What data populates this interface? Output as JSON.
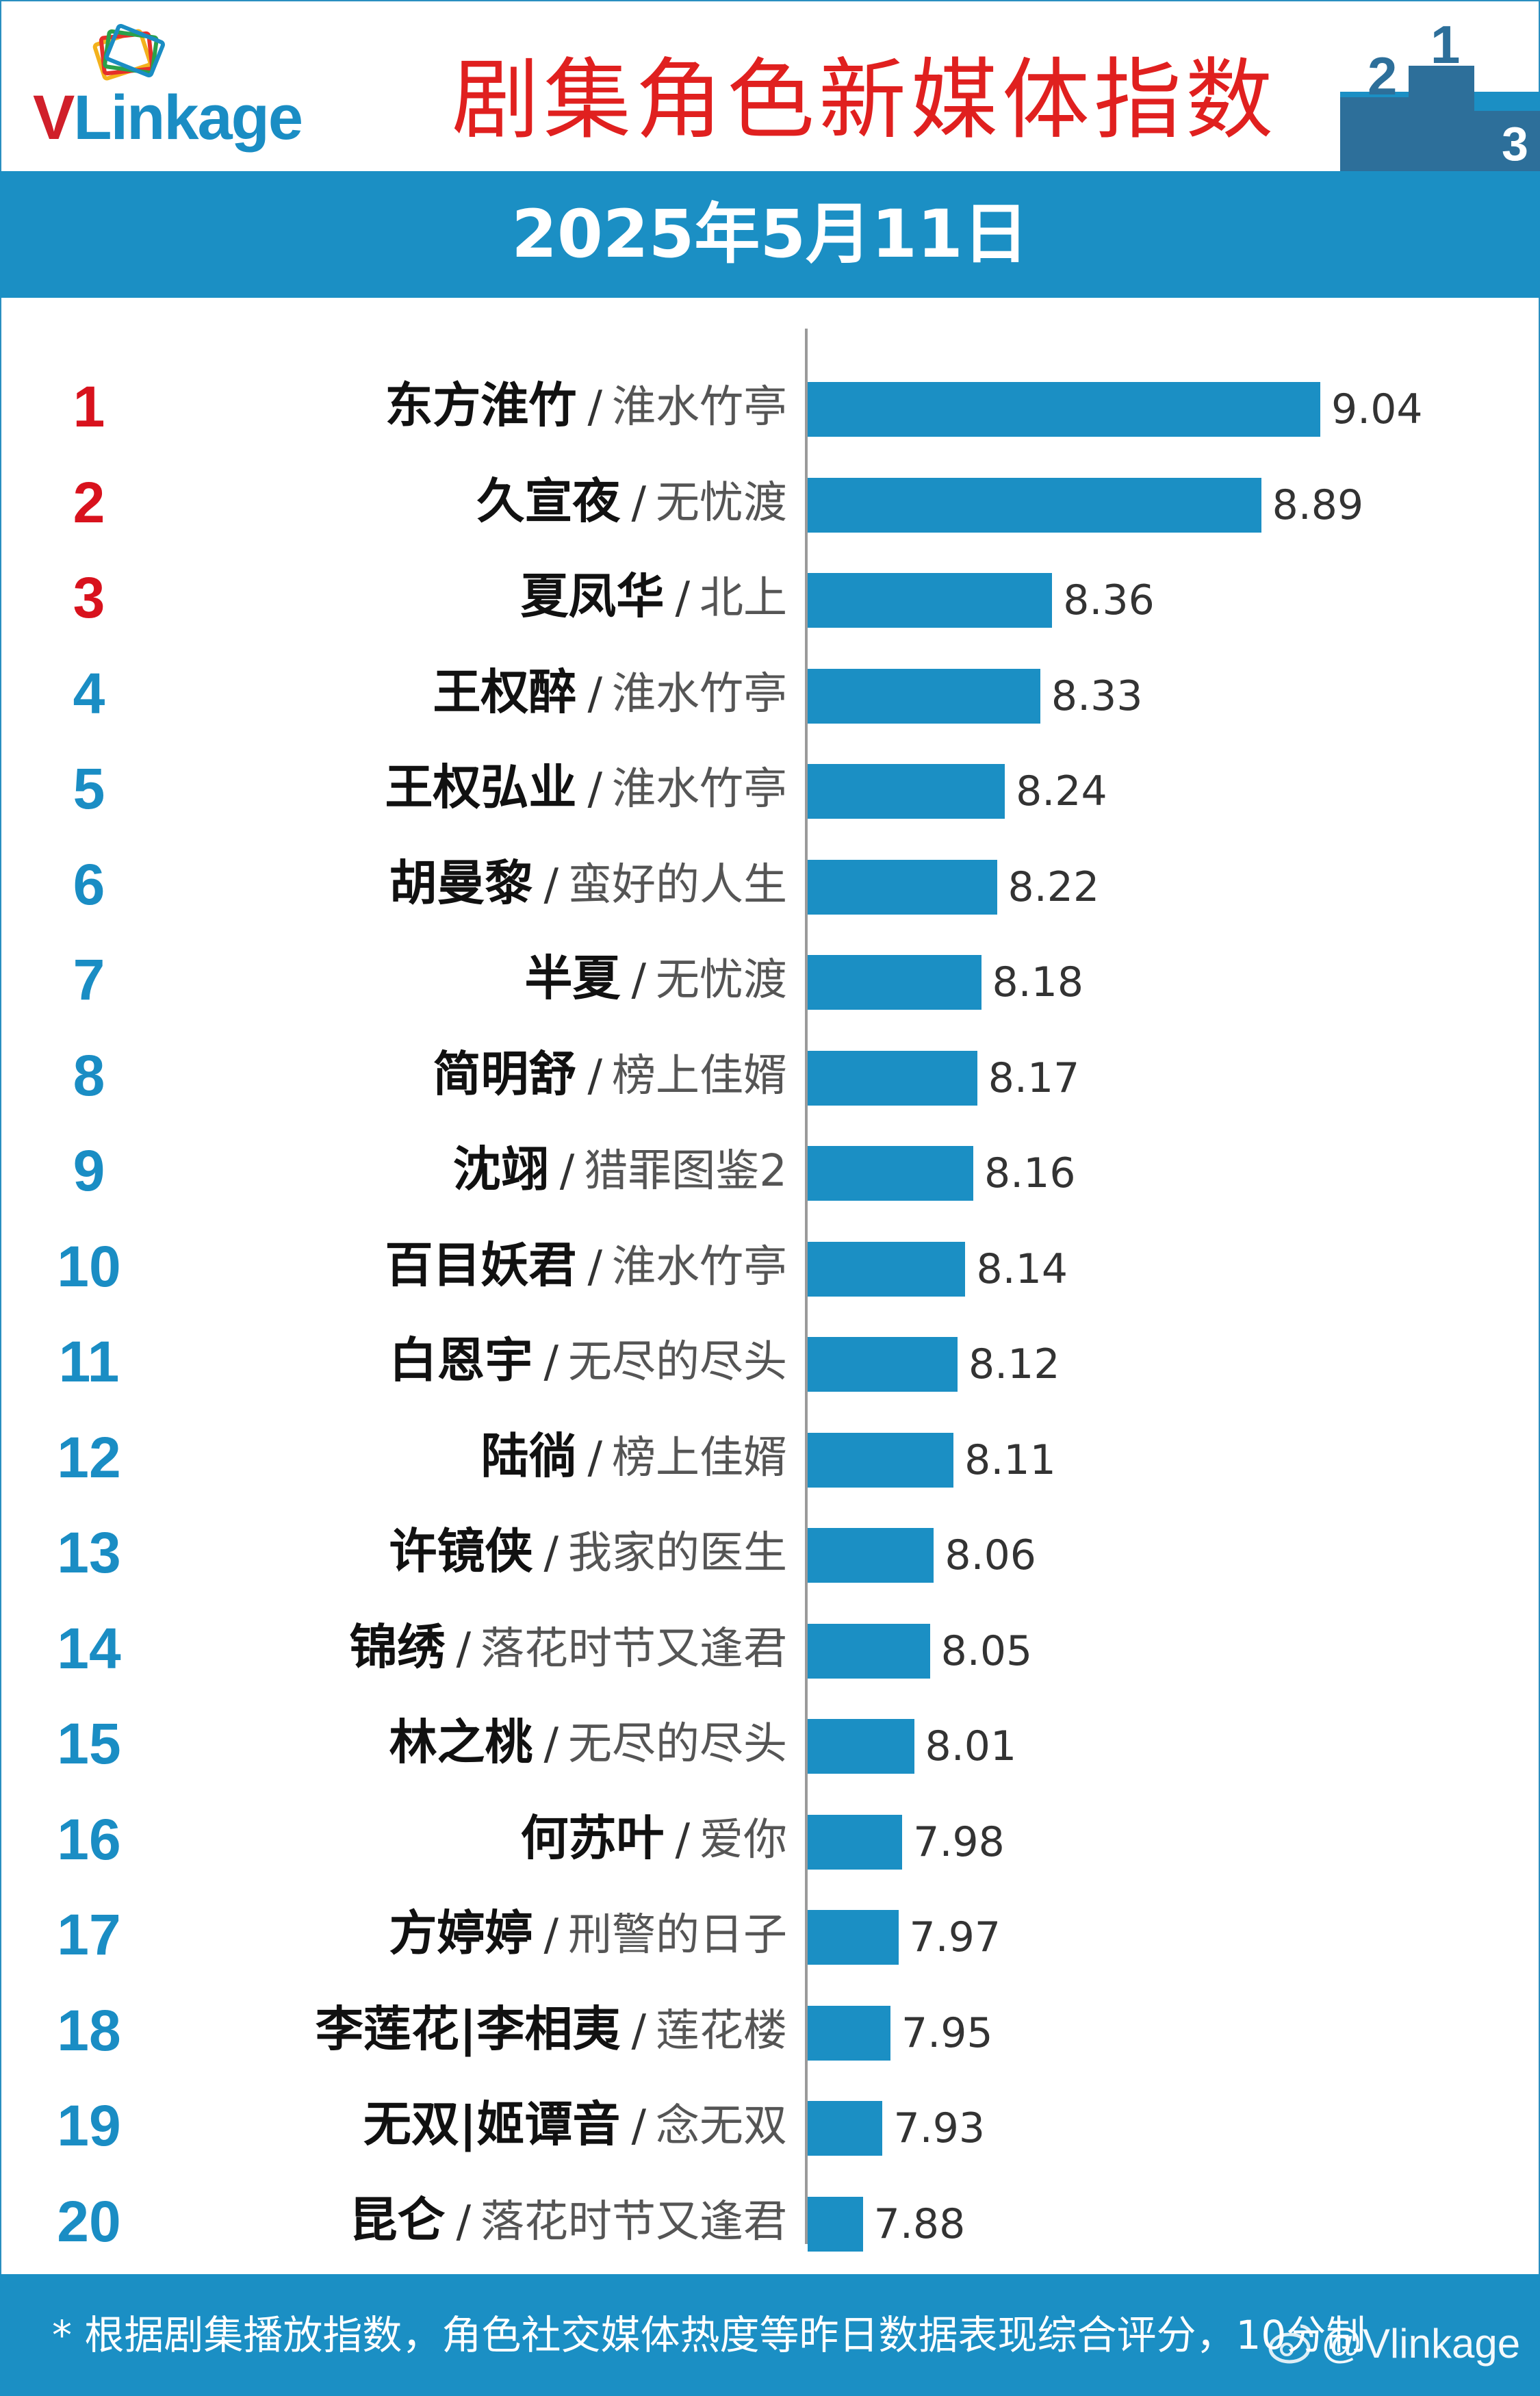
{
  "header": {
    "logo_text": "VLinkage",
    "title": "剧集角色新媒体指数",
    "podium_digits": [
      "2",
      "1",
      "3"
    ]
  },
  "date_label": "2025年5月11日",
  "footer": {
    "note": "* 根据剧集播放指数，角色社交媒体热度等昨日数据表现综合评分，10分制",
    "watermark": "@Vlinkage"
  },
  "colors": {
    "bar": "#1b8fc4",
    "top_rank": "#d8121d",
    "rank": "#1a8dc4",
    "title": "#e0201f"
  },
  "chart_data": {
    "type": "bar",
    "orientation": "horizontal",
    "title": "剧集角色新媒体指数",
    "subtitle": "2025年5月11日",
    "xlim": [
      7.7,
      9.15
    ],
    "grid": false,
    "categories": [
      {
        "rank": "1",
        "name": "东方淮竹",
        "show": "淮水竹亭"
      },
      {
        "rank": "2",
        "name": "久宣夜",
        "show": "无忧渡"
      },
      {
        "rank": "3",
        "name": "夏凤华",
        "show": "北上"
      },
      {
        "rank": "4",
        "name": "王权醉",
        "show": "淮水竹亭"
      },
      {
        "rank": "5",
        "name": "王权弘业",
        "show": "淮水竹亭"
      },
      {
        "rank": "6",
        "name": "胡曼黎",
        "show": "蛮好的人生"
      },
      {
        "rank": "7",
        "name": "半夏",
        "show": "无忧渡"
      },
      {
        "rank": "8",
        "name": "简明舒",
        "show": "榜上佳婿"
      },
      {
        "rank": "9",
        "name": "沈翊",
        "show": "猎罪图鉴2"
      },
      {
        "rank": "10",
        "name": "百目妖君",
        "show": "淮水竹亭"
      },
      {
        "rank": "11",
        "name": "白恩宇",
        "show": "无尽的尽头"
      },
      {
        "rank": "12",
        "name": "陆徜",
        "show": "榜上佳婿"
      },
      {
        "rank": "13",
        "name": "许镜侠",
        "show": "我家的医生"
      },
      {
        "rank": "14",
        "name": "锦绣",
        "show": "落花时节又逢君"
      },
      {
        "rank": "15",
        "name": "林之桃",
        "show": "无尽的尽头"
      },
      {
        "rank": "16",
        "name": "何苏叶",
        "show": "爱你"
      },
      {
        "rank": "17",
        "name": "方婷婷",
        "show": "刑警的日子"
      },
      {
        "rank": "18",
        "name": "李莲花|李相夷",
        "show": "莲花楼"
      },
      {
        "rank": "19",
        "name": "无双|姬谭音",
        "show": "念无双"
      },
      {
        "rank": "20",
        "name": "昆仑",
        "show": "落花时节又逢君"
      }
    ],
    "values": [
      "9.04",
      "8.89",
      "8.36",
      "8.33",
      "8.24",
      "8.22",
      "8.18",
      "8.17",
      "8.16",
      "8.14",
      "8.12",
      "8.11",
      "8.06",
      "8.05",
      "8.01",
      "7.98",
      "7.97",
      "7.95",
      "7.93",
      "7.88"
    ]
  }
}
